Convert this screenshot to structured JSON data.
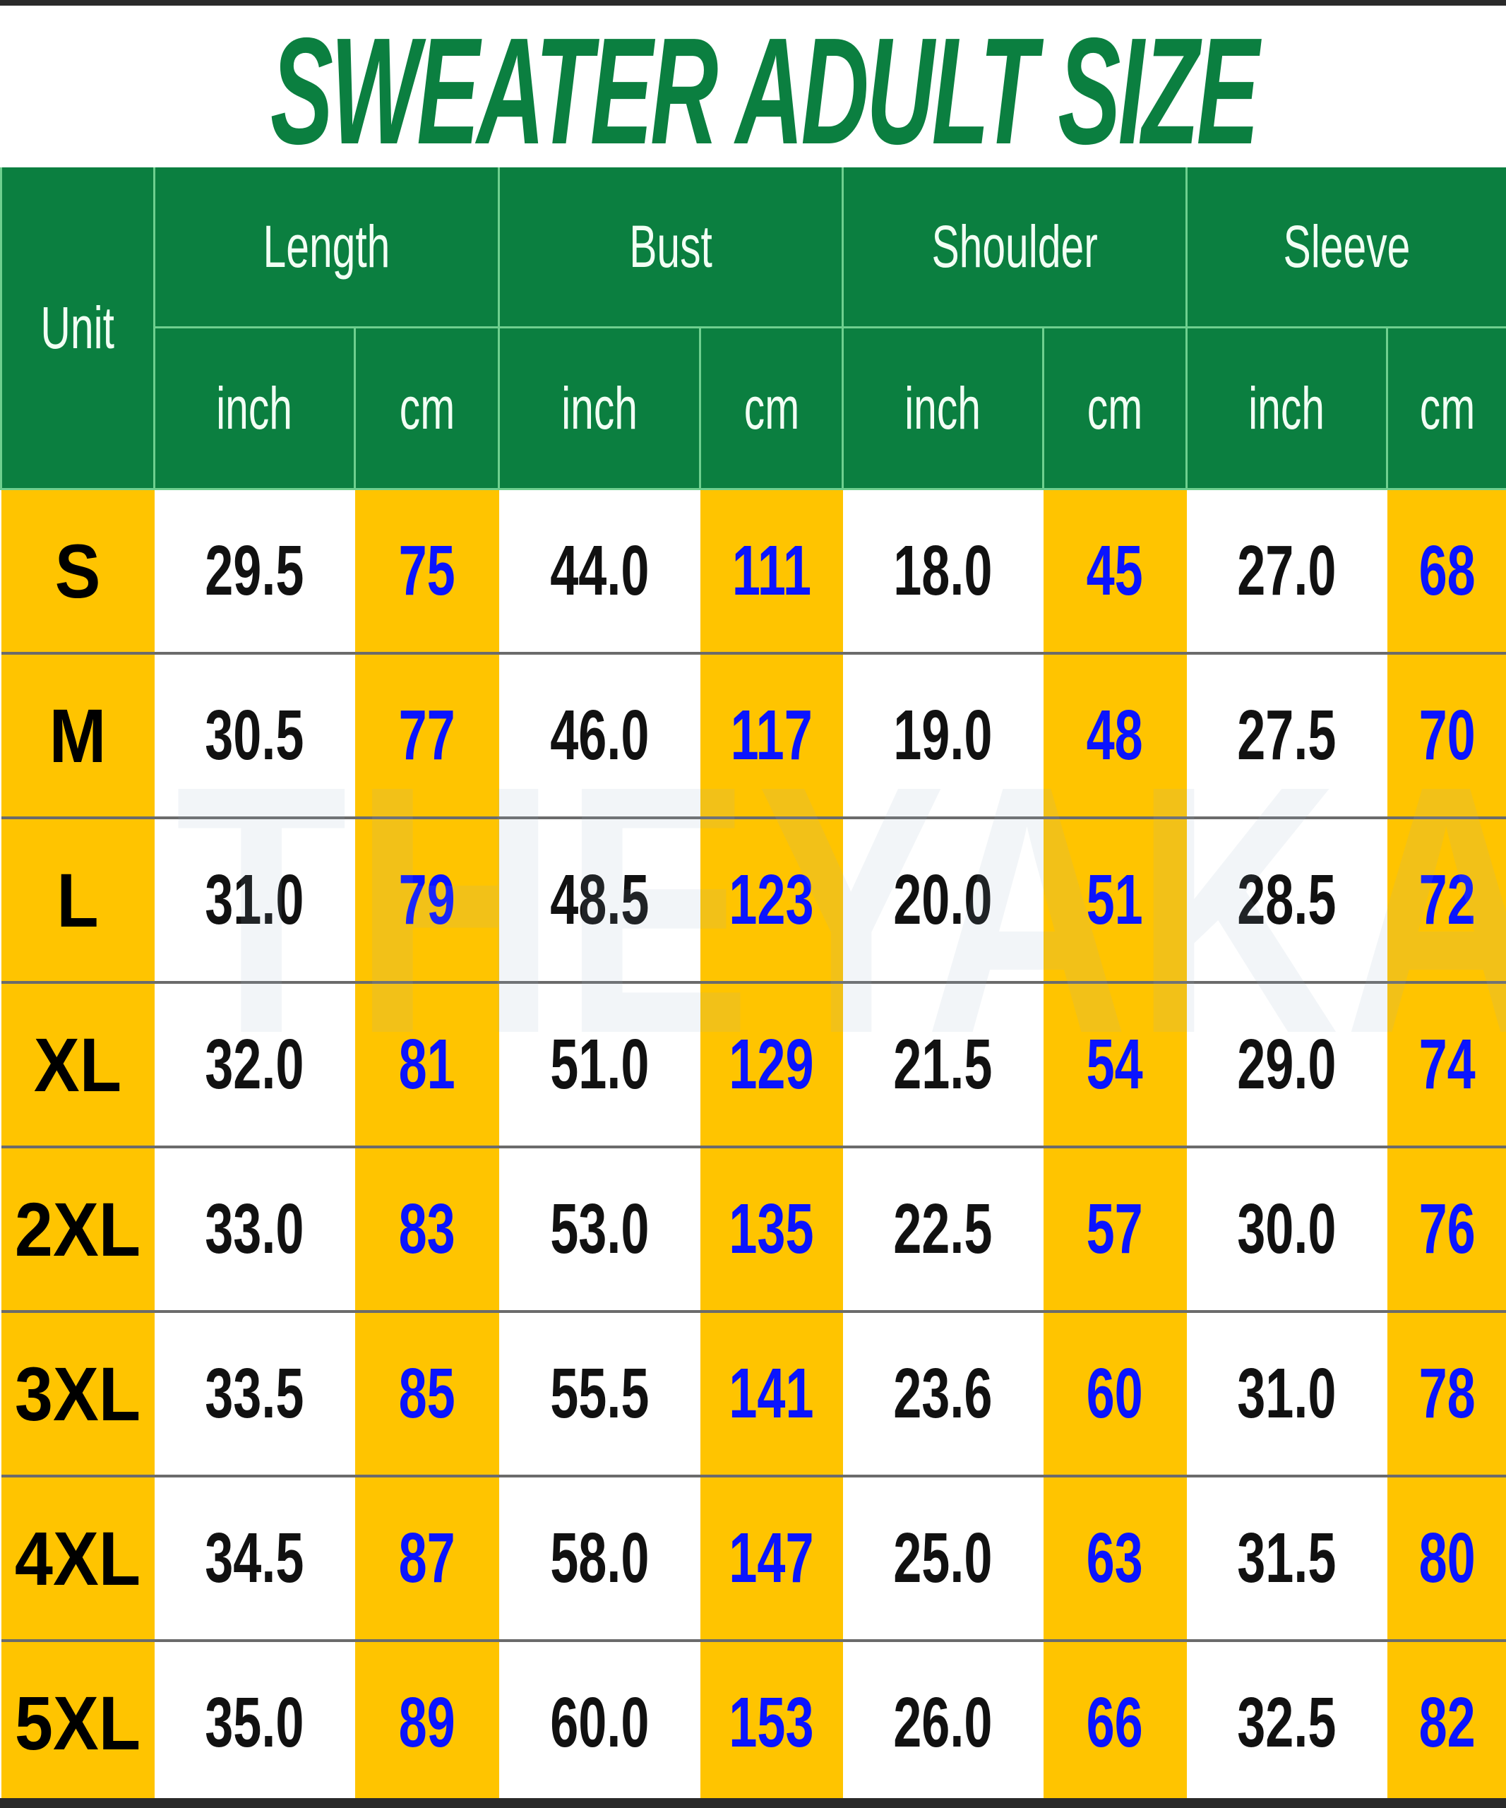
{
  "title": "SWEATER ADULT SIZE",
  "watermark": "THEYAKACOM",
  "colors": {
    "header_green": "#0b7f40",
    "highlight_yellow": "#ffc400",
    "cm_blue": "#0a14ff"
  },
  "header": {
    "unit_label": "Unit",
    "groups": [
      "Length",
      "Bust",
      "Shoulder",
      "Sleeve"
    ],
    "sub_inch": "inch",
    "sub_cm": "cm"
  },
  "rows": [
    {
      "size": "S",
      "values": [
        "29.5",
        "75",
        "44.0",
        "111",
        "18.0",
        "45",
        "27.0",
        "68"
      ]
    },
    {
      "size": "M",
      "values": [
        "30.5",
        "77",
        "46.0",
        "117",
        "19.0",
        "48",
        "27.5",
        "70"
      ]
    },
    {
      "size": "L",
      "values": [
        "31.0",
        "79",
        "48.5",
        "123",
        "20.0",
        "51",
        "28.5",
        "72"
      ]
    },
    {
      "size": "XL",
      "values": [
        "32.0",
        "81",
        "51.0",
        "129",
        "21.5",
        "54",
        "29.0",
        "74"
      ]
    },
    {
      "size": "2XL",
      "values": [
        "33.0",
        "83",
        "53.0",
        "135",
        "22.5",
        "57",
        "30.0",
        "76"
      ]
    },
    {
      "size": "3XL",
      "values": [
        "33.5",
        "85",
        "55.5",
        "141",
        "23.6",
        "60",
        "31.0",
        "78"
      ]
    },
    {
      "size": "4XL",
      "values": [
        "34.5",
        "87",
        "58.0",
        "147",
        "25.0",
        "63",
        "31.5",
        "80"
      ]
    },
    {
      "size": "5XL",
      "values": [
        "35.0",
        "89",
        "60.0",
        "153",
        "26.0",
        "66",
        "32.5",
        "82"
      ]
    }
  ]
}
